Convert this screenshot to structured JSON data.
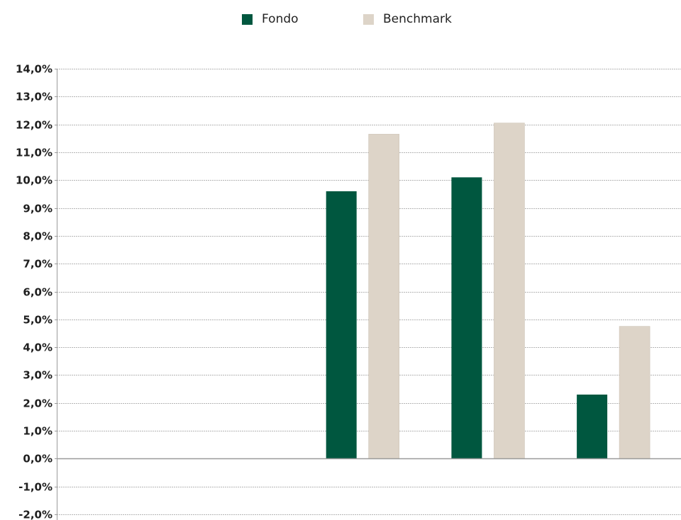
{
  "legend": {
    "items": [
      {
        "label": "Fondo",
        "color": "#00573f"
      },
      {
        "label": "Benchmark",
        "color": "#ddd4c8"
      }
    ]
  },
  "chart_data": {
    "type": "bar",
    "categories": [
      "",
      "",
      "",
      ""
    ],
    "series": [
      {
        "name": "Fondo",
        "color": "#00573f",
        "values": [
          null,
          9.6,
          10.1,
          2.3
        ]
      },
      {
        "name": "Benchmark",
        "color": "#ddd4c8",
        "values": [
          null,
          11.65,
          12.05,
          4.75
        ]
      }
    ],
    "ylim": [
      -2,
      14
    ],
    "yticks": [
      "14,0%",
      "13,0%",
      "12,0%",
      "11,0%",
      "10,0%",
      "9,0%",
      "8,0%",
      "7,0%",
      "6,0%",
      "5,0%",
      "4,0%",
      "3,0%",
      "2,0%",
      "1,0%",
      "0,0%",
      "-1,0%",
      "-2,0%"
    ],
    "ytick_values": [
      14,
      13,
      12,
      11,
      10,
      9,
      8,
      7,
      6,
      5,
      4,
      3,
      2,
      1,
      0,
      -1,
      -2
    ],
    "grid": true,
    "legend_position": "top-center",
    "title": "",
    "xlabel": "",
    "ylabel": ""
  }
}
